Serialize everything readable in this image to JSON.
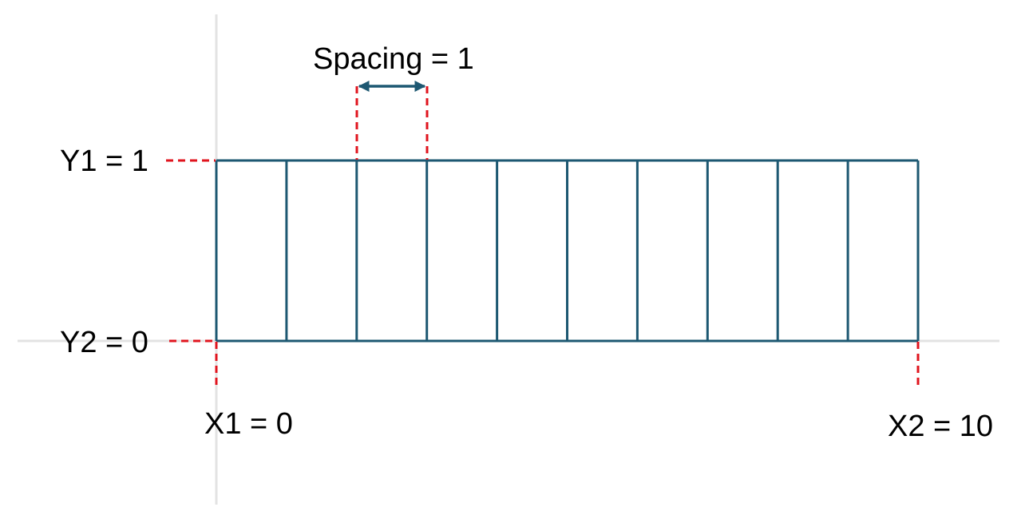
{
  "diagram": {
    "labels": {
      "spacing": "Spacing = 1",
      "y1": "Y1 = 1",
      "y2": "Y2 = 0",
      "x1": "X1 = 0",
      "x2": "X2 = 10"
    },
    "grid": {
      "x_start": 0,
      "x_end": 10,
      "y_bottom": 0,
      "y_top": 1,
      "spacing": 1
    },
    "colors": {
      "grid_line": "#1d5872",
      "guide_dash": "#e0141e",
      "axis": "#e3e3e3",
      "arrow": "#1d5872"
    }
  }
}
